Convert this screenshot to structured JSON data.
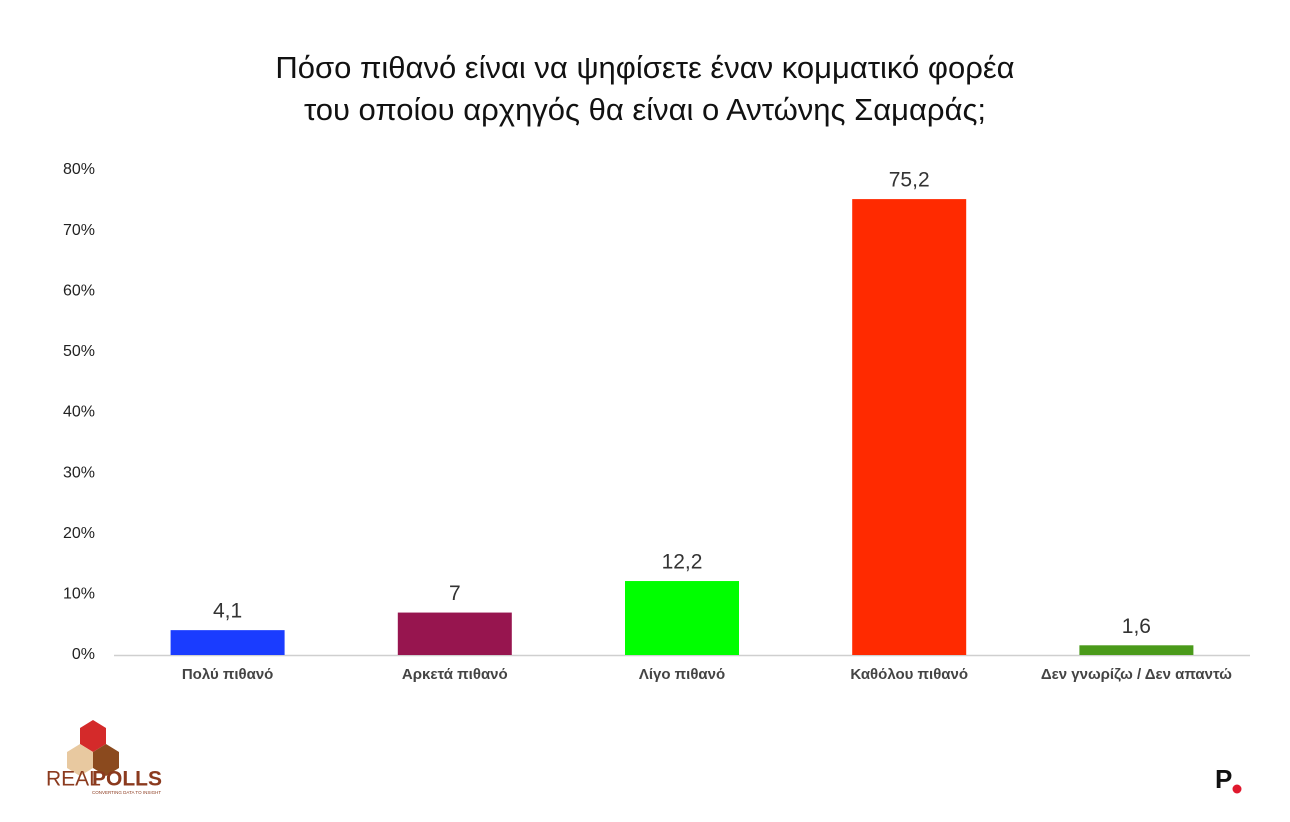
{
  "chart_data": {
    "type": "bar",
    "title": [
      "Πόσο πιθανό είναι να ψηφίσετε έναν κομματικό φορέα",
      "του οποίου αρχηγός θα είναι ο Αντώνης Σαμαράς;"
    ],
    "categories": [
      "Πολύ πιθανό",
      "Αρκετά πιθανό",
      "Λίγο πιθανό",
      "Καθόλου πιθανό",
      "Δεν γνωρίζω / Δεν απαντώ"
    ],
    "values": [
      4.1,
      7,
      12.2,
      75.2,
      1.6
    ],
    "value_labels": [
      "4,1",
      "7",
      "12,2",
      "75,2",
      "1,6"
    ],
    "colors": [
      "#1a3cff",
      "#97154f",
      "#00ff00",
      "#ff2a00",
      "#4a9a1a"
    ],
    "ylim": [
      0,
      80
    ],
    "yticks": [
      {
        "value": 0,
        "label": "0%"
      },
      {
        "value": 10,
        "label": "10%"
      },
      {
        "value": 20,
        "label": "20%"
      },
      {
        "value": 30,
        "label": "30%"
      },
      {
        "value": 40,
        "label": "40%"
      },
      {
        "value": 50,
        "label": "50%"
      },
      {
        "value": 60,
        "label": "60%"
      },
      {
        "value": 70,
        "label": "70%"
      },
      {
        "value": 80,
        "label": "80%"
      }
    ],
    "grid": false
  },
  "logos": {
    "brand_left": "REAL",
    "brand_right": "POLLS",
    "tagline": "CONVERTING DATA TO INSIGHT",
    "publisher": "P"
  }
}
